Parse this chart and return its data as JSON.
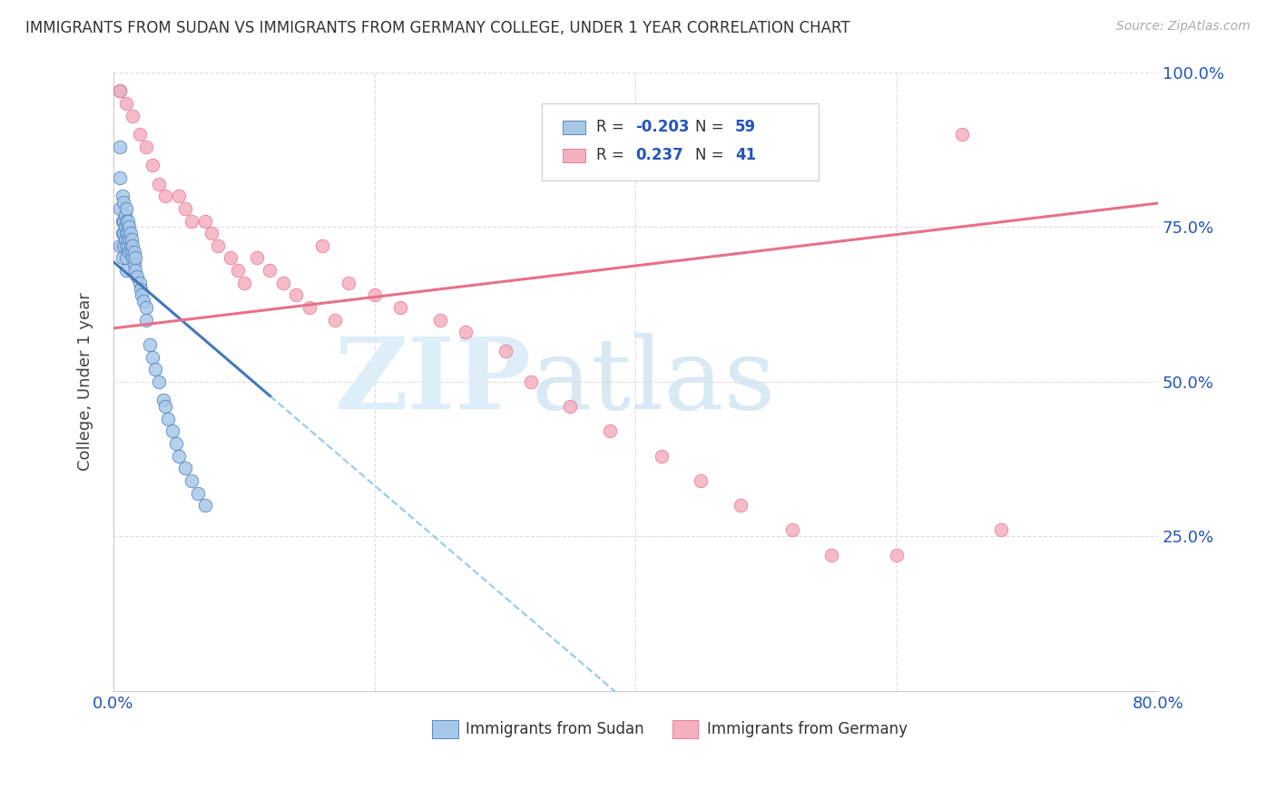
{
  "title": "IMMIGRANTS FROM SUDAN VS IMMIGRANTS FROM GERMANY COLLEGE, UNDER 1 YEAR CORRELATION CHART",
  "source": "Source: ZipAtlas.com",
  "ylabel": "College, Under 1 year",
  "sudan_R": -0.203,
  "sudan_N": 59,
  "germany_R": 0.237,
  "germany_N": 41,
  "sudan_color": "#a8c8e8",
  "germany_color": "#f5b0c0",
  "sudan_line_color": "#4477bb",
  "germany_line_color": "#e8708a",
  "sudan_dashed_color": "#99ccee",
  "background_color": "#ffffff",
  "grid_color": "#dddddd",
  "xlim": [
    0.0,
    0.8
  ],
  "ylim": [
    0.0,
    1.0
  ],
  "y_ticks": [
    0.0,
    0.25,
    0.5,
    0.75,
    1.0
  ],
  "y_tick_labels_right": [
    "",
    "25.0%",
    "50.0%",
    "75.0%",
    "100.0%"
  ],
  "x_ticks": [
    0.0,
    0.2,
    0.4,
    0.6,
    0.8
  ],
  "x_tick_labels": [
    "0.0%",
    "",
    "",
    "",
    "80.0%"
  ],
  "sudan_x": [
    0.005,
    0.005,
    0.005,
    0.005,
    0.005,
    0.007,
    0.007,
    0.007,
    0.007,
    0.008,
    0.008,
    0.008,
    0.008,
    0.009,
    0.009,
    0.009,
    0.01,
    0.01,
    0.01,
    0.01,
    0.01,
    0.01,
    0.011,
    0.011,
    0.011,
    0.012,
    0.012,
    0.012,
    0.013,
    0.013,
    0.014,
    0.014,
    0.015,
    0.015,
    0.016,
    0.016,
    0.017,
    0.017,
    0.018,
    0.02,
    0.021,
    0.022,
    0.023,
    0.025,
    0.025,
    0.028,
    0.03,
    0.032,
    0.035,
    0.038,
    0.04,
    0.042,
    0.045,
    0.048,
    0.05,
    0.055,
    0.06,
    0.065,
    0.07
  ],
  "sudan_y": [
    0.97,
    0.88,
    0.83,
    0.78,
    0.72,
    0.8,
    0.76,
    0.74,
    0.7,
    0.79,
    0.76,
    0.74,
    0.72,
    0.77,
    0.75,
    0.73,
    0.78,
    0.76,
    0.74,
    0.72,
    0.7,
    0.68,
    0.76,
    0.74,
    0.72,
    0.75,
    0.73,
    0.71,
    0.74,
    0.72,
    0.73,
    0.71,
    0.72,
    0.7,
    0.71,
    0.69,
    0.7,
    0.68,
    0.67,
    0.66,
    0.65,
    0.64,
    0.63,
    0.62,
    0.6,
    0.56,
    0.54,
    0.52,
    0.5,
    0.47,
    0.46,
    0.44,
    0.42,
    0.4,
    0.38,
    0.36,
    0.34,
    0.32,
    0.3
  ],
  "germany_x": [
    0.005,
    0.01,
    0.015,
    0.02,
    0.025,
    0.03,
    0.035,
    0.04,
    0.05,
    0.055,
    0.06,
    0.07,
    0.075,
    0.08,
    0.09,
    0.095,
    0.1,
    0.11,
    0.12,
    0.13,
    0.14,
    0.15,
    0.16,
    0.17,
    0.18,
    0.2,
    0.22,
    0.25,
    0.27,
    0.3,
    0.32,
    0.35,
    0.38,
    0.42,
    0.45,
    0.48,
    0.52,
    0.55,
    0.6,
    0.65,
    0.68
  ],
  "germany_y": [
    0.97,
    0.95,
    0.93,
    0.9,
    0.88,
    0.85,
    0.82,
    0.8,
    0.8,
    0.78,
    0.76,
    0.76,
    0.74,
    0.72,
    0.7,
    0.68,
    0.66,
    0.7,
    0.68,
    0.66,
    0.64,
    0.62,
    0.72,
    0.6,
    0.66,
    0.64,
    0.62,
    0.6,
    0.58,
    0.55,
    0.5,
    0.46,
    0.42,
    0.38,
    0.34,
    0.3,
    0.26,
    0.22,
    0.22,
    0.9,
    0.26
  ]
}
